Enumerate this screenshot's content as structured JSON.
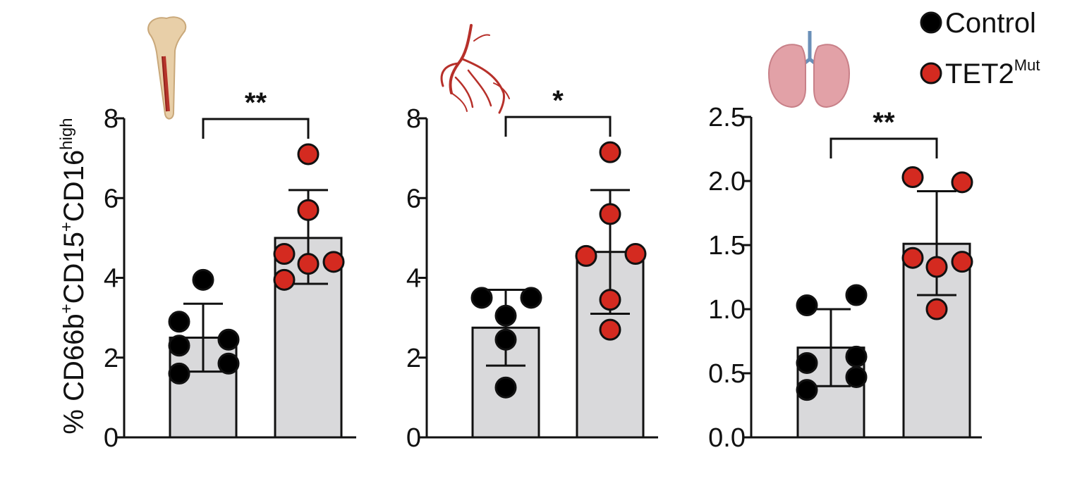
{
  "y_axis_label": {
    "prefix": "% CD66b",
    "sup1": "+",
    "mid": "CD15",
    "sup2": "+",
    "tail": "CD16",
    "sup3": "high"
  },
  "legend": [
    {
      "label": "Control",
      "sup": "",
      "color": "#000000"
    },
    {
      "label": "TET2",
      "sup": "Mut",
      "color": "#d42a20"
    }
  ],
  "icons": [
    "bone-marrow-icon",
    "blood-vessel-icon",
    "lung-icon"
  ],
  "chart_data": [
    {
      "type": "bar",
      "categories": [
        "Control",
        "TET2Mut"
      ],
      "ylim": [
        0,
        8
      ],
      "yticks": [
        "0",
        "2",
        "4",
        "6",
        "8"
      ],
      "series": [
        {
          "name": "Control",
          "mean": 2.5,
          "error_low": 1.65,
          "error_high": 3.35,
          "points": [
            3.95,
            2.9,
            2.3,
            2.45,
            1.85,
            1.6
          ],
          "color": "#000000"
        },
        {
          "name": "TET2Mut",
          "mean": 5.0,
          "error_low": 3.85,
          "error_high": 6.2,
          "points": [
            7.1,
            5.7,
            4.6,
            4.4,
            4.35,
            3.95
          ],
          "color": "#d42a20"
        }
      ],
      "significance": "**"
    },
    {
      "type": "bar",
      "categories": [
        "Control",
        "TET2Mut"
      ],
      "ylim": [
        0,
        8
      ],
      "yticks": [
        "0",
        "2",
        "4",
        "6",
        "8"
      ],
      "series": [
        {
          "name": "Control",
          "mean": 2.75,
          "error_low": 1.8,
          "error_high": 3.7,
          "points": [
            3.5,
            3.5,
            3.05,
            2.45,
            1.25
          ],
          "color": "#000000"
        },
        {
          "name": "TET2Mut",
          "mean": 4.65,
          "error_low": 3.1,
          "error_high": 6.2,
          "points": [
            7.15,
            5.6,
            4.55,
            4.6,
            3.45,
            2.7
          ],
          "color": "#d42a20"
        }
      ],
      "significance": "*"
    },
    {
      "type": "bar",
      "categories": [
        "Control",
        "TET2Mut"
      ],
      "ylim": [
        0,
        2.5
      ],
      "yticks": [
        "0.0",
        "0.5",
        "1.0",
        "1.5",
        "2.0",
        "2.5"
      ],
      "series": [
        {
          "name": "Control",
          "mean": 0.7,
          "error_low": 0.4,
          "error_high": 1.0,
          "points": [
            1.03,
            1.11,
            0.63,
            0.58,
            0.47,
            0.37
          ],
          "color": "#000000"
        },
        {
          "name": "TET2Mut",
          "mean": 1.51,
          "error_low": 1.11,
          "error_high": 1.92,
          "points": [
            2.03,
            1.99,
            1.4,
            1.33,
            1.37,
            1.0
          ],
          "color": "#d42a20"
        }
      ],
      "significance": "**"
    }
  ]
}
